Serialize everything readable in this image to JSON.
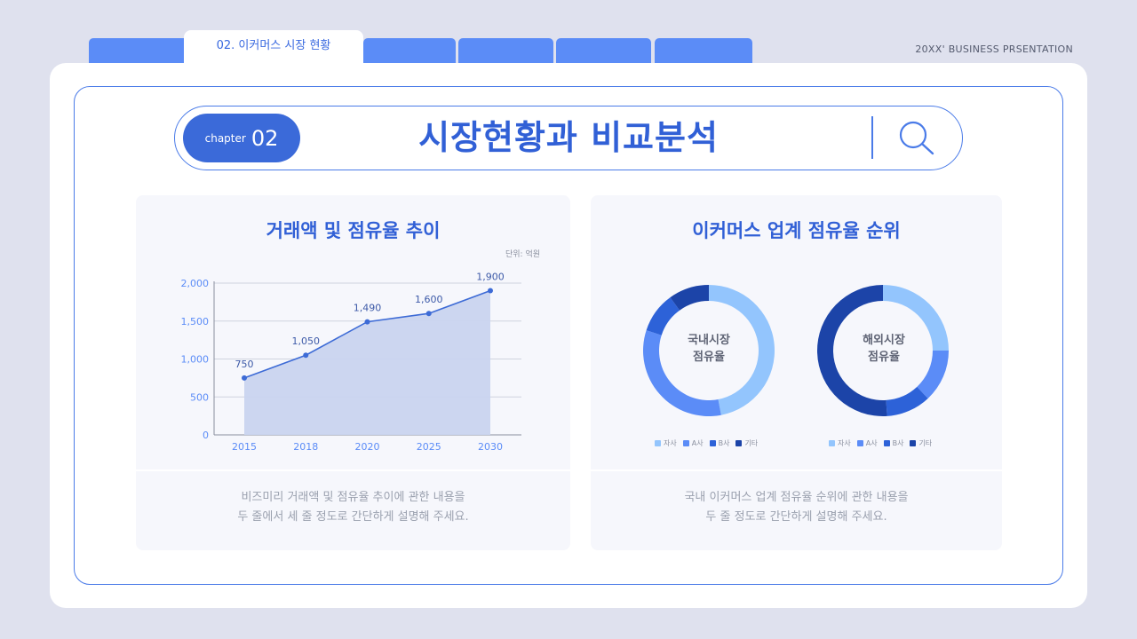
{
  "header": {
    "active_tab_label": "02. 이커머스 시장 현황",
    "top_right_text": "20XX' BUSINESS PRSENTATION"
  },
  "title_bar": {
    "chapter_label": "chapter",
    "chapter_number": "02",
    "title": "시장현황과 비교분석",
    "search_icon": "search-icon"
  },
  "left_panel": {
    "title": "거래액 및 점유율 추이",
    "unit": "단위: 억원",
    "caption_line1": "비즈미리 거래액 및 점유율 추이에 관한 내용을",
    "caption_line2": "두 줄에서 세 줄 정도로 간단하게 설명해 주세요."
  },
  "right_panel": {
    "title": "이커머스 업계 점유율 순위",
    "donut1_label_line1": "국내시장",
    "donut1_label_line2": "점유율",
    "donut2_label_line1": "해외시장",
    "donut2_label_line2": "점유율",
    "caption_line1": "국내 이커머스 업계 점유율 순위에 관한 내용을",
    "caption_line2": "두 줄 정도로 간단하게 설명해 주세요."
  },
  "colors": {
    "accent": "#3160d6",
    "tab": "#5b8cf7",
    "area_fill": "#c9d4ef",
    "line": "#3d6bd6"
  },
  "chart_data": [
    {
      "type": "area",
      "title": "거래액 및 점유율 추이",
      "x": [
        "2015",
        "2018",
        "2020",
        "2025",
        "2030"
      ],
      "values": [
        750,
        1050,
        1490,
        1600,
        1900
      ],
      "data_labels": [
        "750",
        "1,050",
        "1,490",
        "1,600",
        "1,900"
      ],
      "yticks": [
        "0",
        "500",
        "1,000",
        "1,500",
        "2,000"
      ],
      "ylim": [
        0,
        2000
      ],
      "grid": true
    },
    {
      "type": "pie",
      "title": "국내시장 점유율",
      "labels": [
        "자사",
        "A사",
        "B사",
        "기타"
      ],
      "values": [
        47,
        33,
        10,
        10
      ],
      "colors": [
        "#93c5fd",
        "#5b8cf7",
        "#2d62d8",
        "#1c44a8"
      ],
      "legend": "bottom"
    },
    {
      "type": "pie",
      "title": "해외시장 점유율",
      "labels": [
        "자사",
        "A사",
        "B사",
        "기타"
      ],
      "values": [
        25,
        13,
        11,
        51
      ],
      "colors": [
        "#93c5fd",
        "#5b8cf7",
        "#2d62d8",
        "#1c44a8"
      ],
      "legend": "bottom"
    }
  ]
}
